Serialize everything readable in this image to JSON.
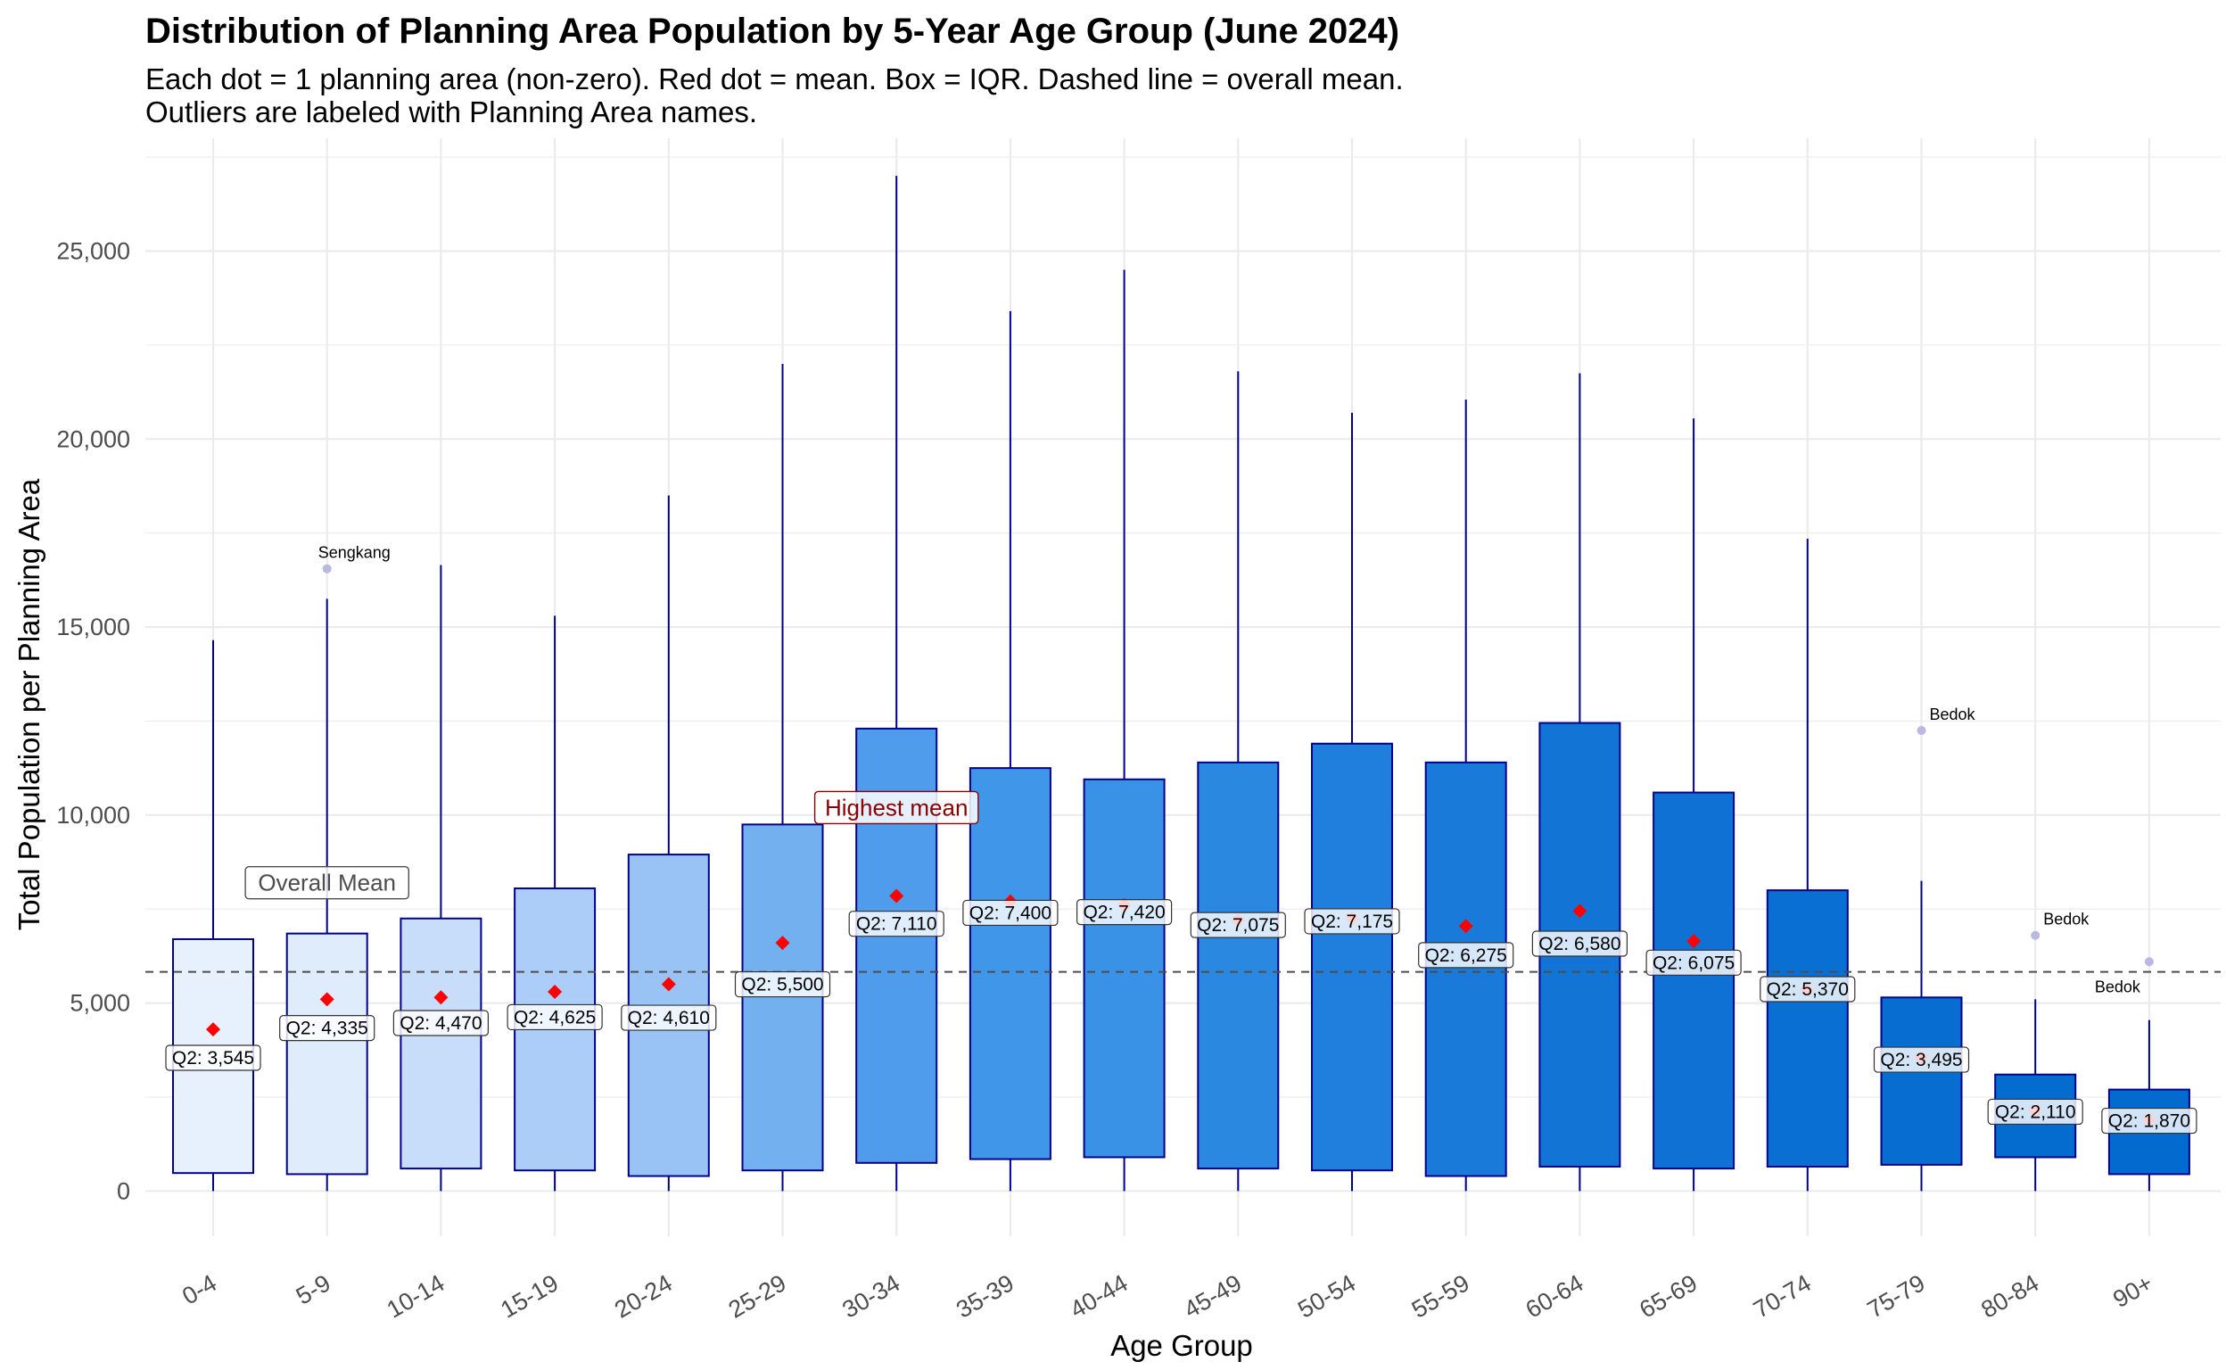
{
  "chart_data": {
    "type": "box",
    "title": "Distribution of Planning Area Population by 5-Year Age Group (June 2024)",
    "subtitle_lines": [
      "Each dot = 1 planning area (non-zero). Red dot = mean. Box = IQR. Dashed line = overall mean.",
      "Outliers are labeled with Planning Area names."
    ],
    "xlabel": "Age Group",
    "ylabel": "Total Population per Planning Area",
    "ylim": [
      -1200,
      28000
    ],
    "yticks": [
      0,
      5000,
      10000,
      15000,
      20000,
      25000
    ],
    "ytick_labels": [
      "0",
      "5,000",
      "10,000",
      "15,000",
      "20,000",
      "25,000"
    ],
    "overall_mean": 5830,
    "categories": [
      "0-4",
      "5-9",
      "10-14",
      "15-19",
      "20-24",
      "25-29",
      "30-34",
      "35-39",
      "40-44",
      "45-49",
      "50-54",
      "55-59",
      "60-64",
      "65-69",
      "70-74",
      "75-79",
      "80-84",
      "90+"
    ],
    "groups": [
      {
        "label": "0-4",
        "min": 0,
        "q1": 480,
        "median": 3545,
        "q3": 6700,
        "max": 14650,
        "mean": 4300,
        "median_label": "Q2: 3,545",
        "fill": "#e6f1fd"
      },
      {
        "label": "5-9",
        "min": 0,
        "q1": 450,
        "median": 4335,
        "q3": 6850,
        "max": 15750,
        "mean": 5100,
        "median_label": "Q2: 4,335",
        "fill": "#deecfc"
      },
      {
        "label": "10-14",
        "min": 0,
        "q1": 600,
        "median": 4470,
        "q3": 7250,
        "max": 16650,
        "mean": 5150,
        "median_label": "Q2: 4,470",
        "fill": "#c8ddfa"
      },
      {
        "label": "15-19",
        "min": 0,
        "q1": 550,
        "median": 4625,
        "q3": 8050,
        "max": 15300,
        "mean": 5300,
        "median_label": "Q2: 4,625",
        "fill": "#abcdf7"
      },
      {
        "label": "20-24",
        "min": 0,
        "q1": 400,
        "median": 4610,
        "q3": 8950,
        "max": 18500,
        "mean": 5500,
        "median_label": "Q2: 4,610",
        "fill": "#98c3f4"
      },
      {
        "label": "25-29",
        "min": 0,
        "q1": 550,
        "median": 5500,
        "q3": 9750,
        "max": 22000,
        "mean": 6600,
        "median_label": "Q2: 5,500",
        "fill": "#72b0f0"
      },
      {
        "label": "30-34",
        "min": 0,
        "q1": 750,
        "median": 7110,
        "q3": 12300,
        "max": 27000,
        "mean": 7850,
        "median_label": "Q2: 7,110",
        "fill": "#4e9ceb"
      },
      {
        "label": "35-39",
        "min": 0,
        "q1": 850,
        "median": 7400,
        "q3": 11250,
        "max": 23400,
        "mean": 7700,
        "median_label": "Q2: 7,400",
        "fill": "#4096e8"
      },
      {
        "label": "40-44",
        "min": 0,
        "q1": 900,
        "median": 7420,
        "q3": 10950,
        "max": 24500,
        "mean": 7600,
        "median_label": "Q2: 7,420",
        "fill": "#3a92e7"
      },
      {
        "label": "45-49",
        "min": 0,
        "q1": 600,
        "median": 7075,
        "q3": 11400,
        "max": 21800,
        "mean": 7200,
        "median_label": "Q2: 7,075",
        "fill": "#2b88e0"
      },
      {
        "label": "50-54",
        "min": 0,
        "q1": 550,
        "median": 7175,
        "q3": 11900,
        "max": 20700,
        "mean": 7250,
        "median_label": "Q2: 7,175",
        "fill": "#207fdc"
      },
      {
        "label": "55-59",
        "min": 0,
        "q1": 400,
        "median": 6275,
        "q3": 11400,
        "max": 21050,
        "mean": 7050,
        "median_label": "Q2: 6,275",
        "fill": "#1a7ada"
      },
      {
        "label": "60-64",
        "min": 0,
        "q1": 650,
        "median": 6580,
        "q3": 12450,
        "max": 21750,
        "mean": 7450,
        "median_label": "Q2: 6,580",
        "fill": "#1275d6"
      },
      {
        "label": "65-69",
        "min": 0,
        "q1": 600,
        "median": 6075,
        "q3": 10600,
        "max": 20550,
        "mean": 6650,
        "median_label": "Q2: 6,075",
        "fill": "#0e71d3"
      },
      {
        "label": "70-74",
        "min": 0,
        "q1": 650,
        "median": 5370,
        "q3": 8000,
        "max": 17350,
        "mean": 5350,
        "median_label": "Q2: 5,370",
        "fill": "#0a6fd2"
      },
      {
        "label": "75-79",
        "min": 0,
        "q1": 700,
        "median": 3495,
        "q3": 5150,
        "max": 8250,
        "mean": 3550,
        "median_label": "Q2: 3,495",
        "fill": "#076dd1"
      },
      {
        "label": "80-84",
        "min": 0,
        "q1": 900,
        "median": 2110,
        "q3": 3100,
        "max": 5100,
        "mean": 2150,
        "median_label": "Q2: 2,110",
        "fill": "#056ccf"
      },
      {
        "label": "90+",
        "min": 0,
        "q1": 450,
        "median": 1870,
        "q3": 2700,
        "max": 4550,
        "mean": 1900,
        "median_label": "Q2: 1,870",
        "fill": "#036bd0"
      }
    ],
    "outliers": [
      {
        "category": "5-9",
        "value": 16550,
        "label": "Sengkang"
      },
      {
        "category": "75-79",
        "value": 12250,
        "label": "Bedok"
      },
      {
        "category": "80-84",
        "value": 6800,
        "label": "Bedok"
      },
      {
        "category": "90+",
        "value": 6100,
        "label": "Bedok"
      }
    ],
    "annotations": [
      {
        "text": "Overall Mean",
        "category": "5-9",
        "value": 8200,
        "color": "#4d4d4d"
      },
      {
        "text": "Highest mean",
        "category": "30-34",
        "value": 10200,
        "color": "#8b0000"
      }
    ],
    "colors": {
      "box_outline": "#00008b",
      "mean_marker": "#ff0000",
      "outlier": "#b8b8e0",
      "grid": "#ebebeb",
      "mean_line": "#4d4d4d"
    },
    "grid": true,
    "legend": "none"
  }
}
